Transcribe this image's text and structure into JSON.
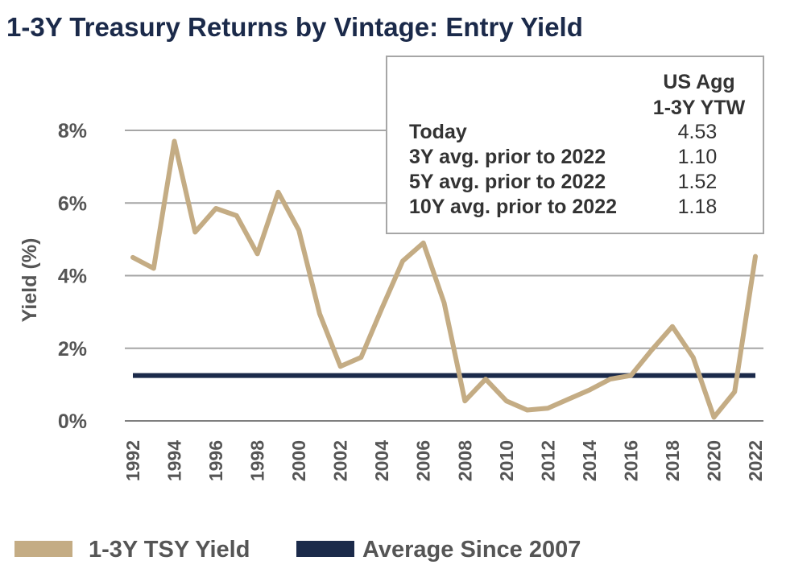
{
  "chart_data": {
    "type": "line",
    "title": "1-3Y Treasury Returns by Vintage: Entry Yield",
    "ylabel": "Yield (%)",
    "xlabel": "",
    "ylim": [
      0,
      8
    ],
    "yticks": [
      0,
      2,
      4,
      6,
      8
    ],
    "ytick_labels": [
      "0%",
      "2%",
      "4%",
      "6%",
      "8%"
    ],
    "grid": true,
    "x": [
      1992,
      1993,
      1994,
      1995,
      1996,
      1997,
      1998,
      1999,
      2000,
      2001,
      2002,
      2003,
      2004,
      2005,
      2006,
      2007,
      2008,
      2009,
      2010,
      2011,
      2012,
      2013,
      2014,
      2015,
      2016,
      2017,
      2018,
      2019,
      2020,
      2021,
      2022
    ],
    "xtick_labels": [
      "1992",
      "1994",
      "1996",
      "1998",
      "2000",
      "2002",
      "2004",
      "2006",
      "2008",
      "2010",
      "2012",
      "2014",
      "2016",
      "2018",
      "2020",
      "2022"
    ],
    "series": [
      {
        "name": "1-3Y TSY Yield",
        "color": "#c4ac84",
        "values": [
          4.5,
          4.2,
          7.7,
          5.2,
          5.85,
          5.65,
          4.6,
          6.3,
          5.25,
          2.95,
          1.5,
          1.75,
          3.1,
          4.4,
          4.9,
          3.25,
          0.55,
          1.15,
          0.55,
          0.3,
          0.35,
          0.6,
          0.85,
          1.15,
          1.25,
          1.95,
          2.6,
          1.75,
          0.1,
          0.8,
          4.53
        ]
      },
      {
        "name": "Average Since 2007",
        "color": "#1b2a4a",
        "type": "hline",
        "value": 1.25,
        "x_range": [
          1992,
          2022
        ]
      }
    ],
    "legend_position": "bottom",
    "inset_table": {
      "position": "top-right",
      "header": [
        "US Agg",
        "1-3Y YTW"
      ],
      "rows": [
        {
          "label": "Today",
          "value": "4.53"
        },
        {
          "label": "3Y avg. prior to 2022",
          "value": "1.10"
        },
        {
          "label": "5Y avg. prior to 2022",
          "value": "1.52"
        },
        {
          "label": "10Y avg. prior to 2022",
          "value": "1.18"
        }
      ]
    }
  }
}
